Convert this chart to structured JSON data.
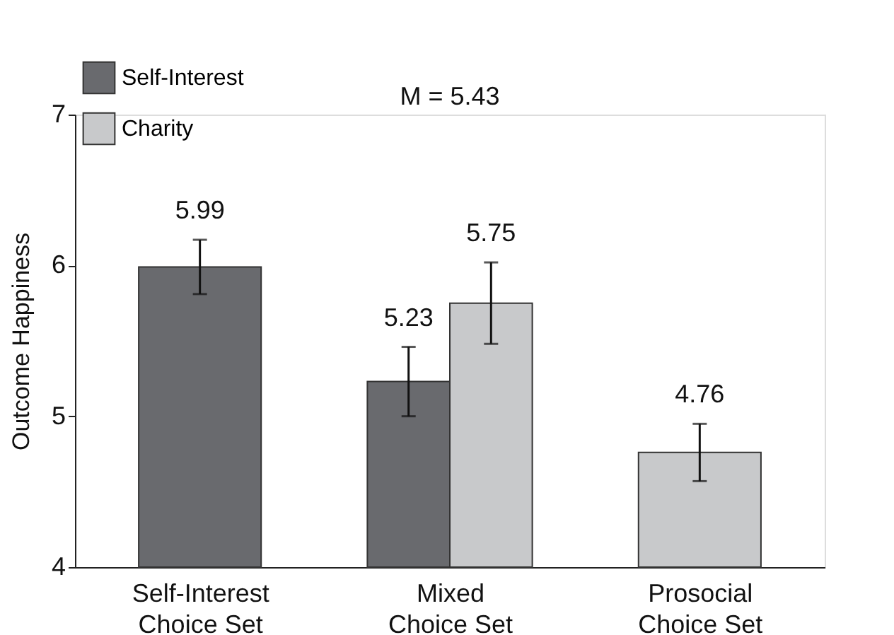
{
  "chart_data": {
    "type": "bar",
    "ylabel": "Outcome Happiness",
    "categories": [
      "Self-Interest Choice Set",
      "Mixed Choice Set",
      "Prosocial Choice Set"
    ],
    "series": [
      {
        "name": "Self-Interest",
        "color": "#696a6e",
        "values": [
          5.99,
          5.23,
          null
        ],
        "errors": [
          0.18,
          0.23,
          null
        ]
      },
      {
        "name": "Charity",
        "color": "#c8c9cb",
        "values": [
          null,
          5.75,
          4.76
        ],
        "errors": [
          null,
          0.27,
          0.19
        ]
      }
    ],
    "ylim": [
      4,
      7
    ],
    "yticks": [
      4,
      5,
      6,
      7
    ],
    "data_labels": true,
    "annotations": [
      "M = 5.43"
    ],
    "legend": "top left",
    "grid": false
  }
}
